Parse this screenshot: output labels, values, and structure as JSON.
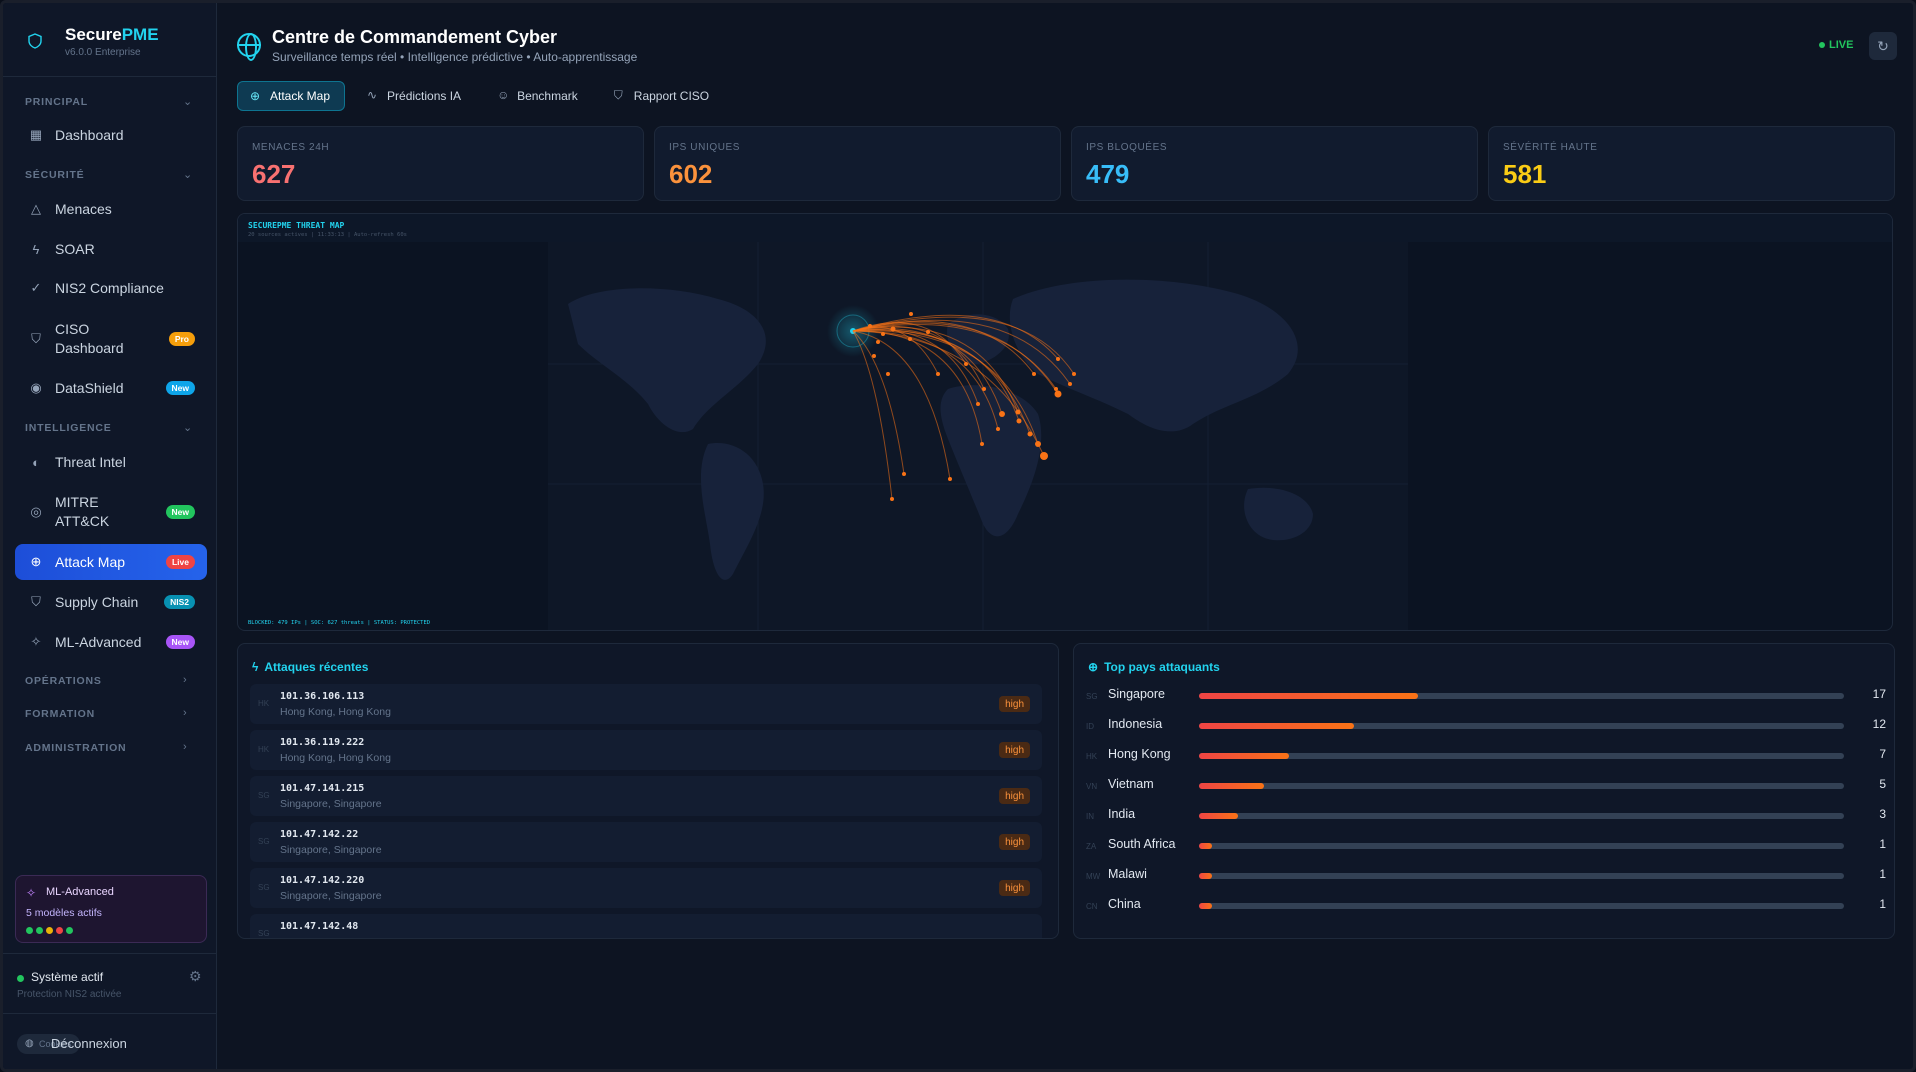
{
  "brand": {
    "name_a": "Secure",
    "name_b": "PME",
    "version": "v6.0.0 Enterprise"
  },
  "sidebar": {
    "sections": {
      "principal": "PRINCIPAL",
      "securite": "SÉCURITÉ",
      "intelligence": "INTELLIGENCE",
      "operations": "OPÉRATIONS",
      "formation": "FORMATION",
      "administration": "ADMINISTRATION"
    },
    "items": {
      "dashboard": "Dashboard",
      "menaces": "Menaces",
      "soar": "SOAR",
      "nis2": "NIS2 Compliance",
      "ciso_a": "CISO",
      "ciso_b": "Dashboard",
      "ciso_badge": "Pro",
      "datashield": "DataShield",
      "datashield_badge": "New",
      "threat_intel": "Threat Intel",
      "mitre_a": "MITRE",
      "mitre_b": "ATT&CK",
      "mitre_badge": "New",
      "attack_map": "Attack Map",
      "attack_map_badge": "Live",
      "supply_chain": "Supply Chain",
      "supply_chain_badge": "NIS2",
      "ml_advanced": "ML-Advanced",
      "ml_advanced_badge": "New"
    },
    "ml_card": {
      "title": "ML-Advanced",
      "subtitle": "5 modèles actifs",
      "dot_colors": [
        "#22c55e",
        "#22c55e",
        "#eab308",
        "#ef4444",
        "#22c55e"
      ]
    },
    "system": {
      "status": "Système actif",
      "detail": "Protection NIS2 activée"
    },
    "chip": "Cookies",
    "logout": "Déconnexion"
  },
  "header": {
    "title": "Centre de Commandement Cyber",
    "subtitle": "Surveillance temps réel • Intelligence prédictive • Auto-apprentissage",
    "live": "LIVE"
  },
  "tabs": {
    "attack_map": "Attack Map",
    "predictions": "Prédictions IA",
    "benchmark": "Benchmark",
    "rapport": "Rapport CISO"
  },
  "kpis": [
    {
      "label": "MENACES 24H",
      "value": "627",
      "color": "#f87171"
    },
    {
      "label": "IPS UNIQUES",
      "value": "602",
      "color": "#fb923c"
    },
    {
      "label": "IPS BLOQUÉES",
      "value": "479",
      "color": "#38bdf8"
    },
    {
      "label": "SÉVÉRITÉ HAUTE",
      "value": "581",
      "color": "#facc15"
    }
  ],
  "map": {
    "title": "SECUREPME THREAT MAP",
    "status": "20 sources actives | 11:33:13 | Auto-refresh 60s",
    "footer": "BLOCKED: 479 IPs  |  SOC: 627 threats  |  STATUS: PROTECTED"
  },
  "recent": {
    "title": "Attaques récentes",
    "rows": [
      {
        "cc": "HK",
        "ip": "101.36.106.113",
        "loc": "Hong Kong, Hong Kong",
        "sev": "high"
      },
      {
        "cc": "HK",
        "ip": "101.36.119.222",
        "loc": "Hong Kong, Hong Kong",
        "sev": "high"
      },
      {
        "cc": "SG",
        "ip": "101.47.141.215",
        "loc": "Singapore, Singapore",
        "sev": "high"
      },
      {
        "cc": "SG",
        "ip": "101.47.142.22",
        "loc": "Singapore, Singapore",
        "sev": "high"
      },
      {
        "cc": "SG",
        "ip": "101.47.142.220",
        "loc": "Singapore, Singapore",
        "sev": "high"
      },
      {
        "cc": "SG",
        "ip": "101.47.142.48",
        "loc": "",
        "sev": ""
      }
    ]
  },
  "countries": {
    "title": "Top pays attaquants",
    "max": 17,
    "rows": [
      {
        "cc": "SG",
        "name": "Singapore",
        "count": 17
      },
      {
        "cc": "ID",
        "name": "Indonesia",
        "count": 12
      },
      {
        "cc": "HK",
        "name": "Hong Kong",
        "count": 7
      },
      {
        "cc": "VN",
        "name": "Vietnam",
        "count": 5
      },
      {
        "cc": "IN",
        "name": "India",
        "count": 3
      },
      {
        "cc": "ZA",
        "name": "South Africa",
        "count": 1
      },
      {
        "cc": "MW",
        "name": "Malawi",
        "count": 1
      },
      {
        "cc": "CN",
        "name": "China",
        "count": 1
      }
    ]
  }
}
